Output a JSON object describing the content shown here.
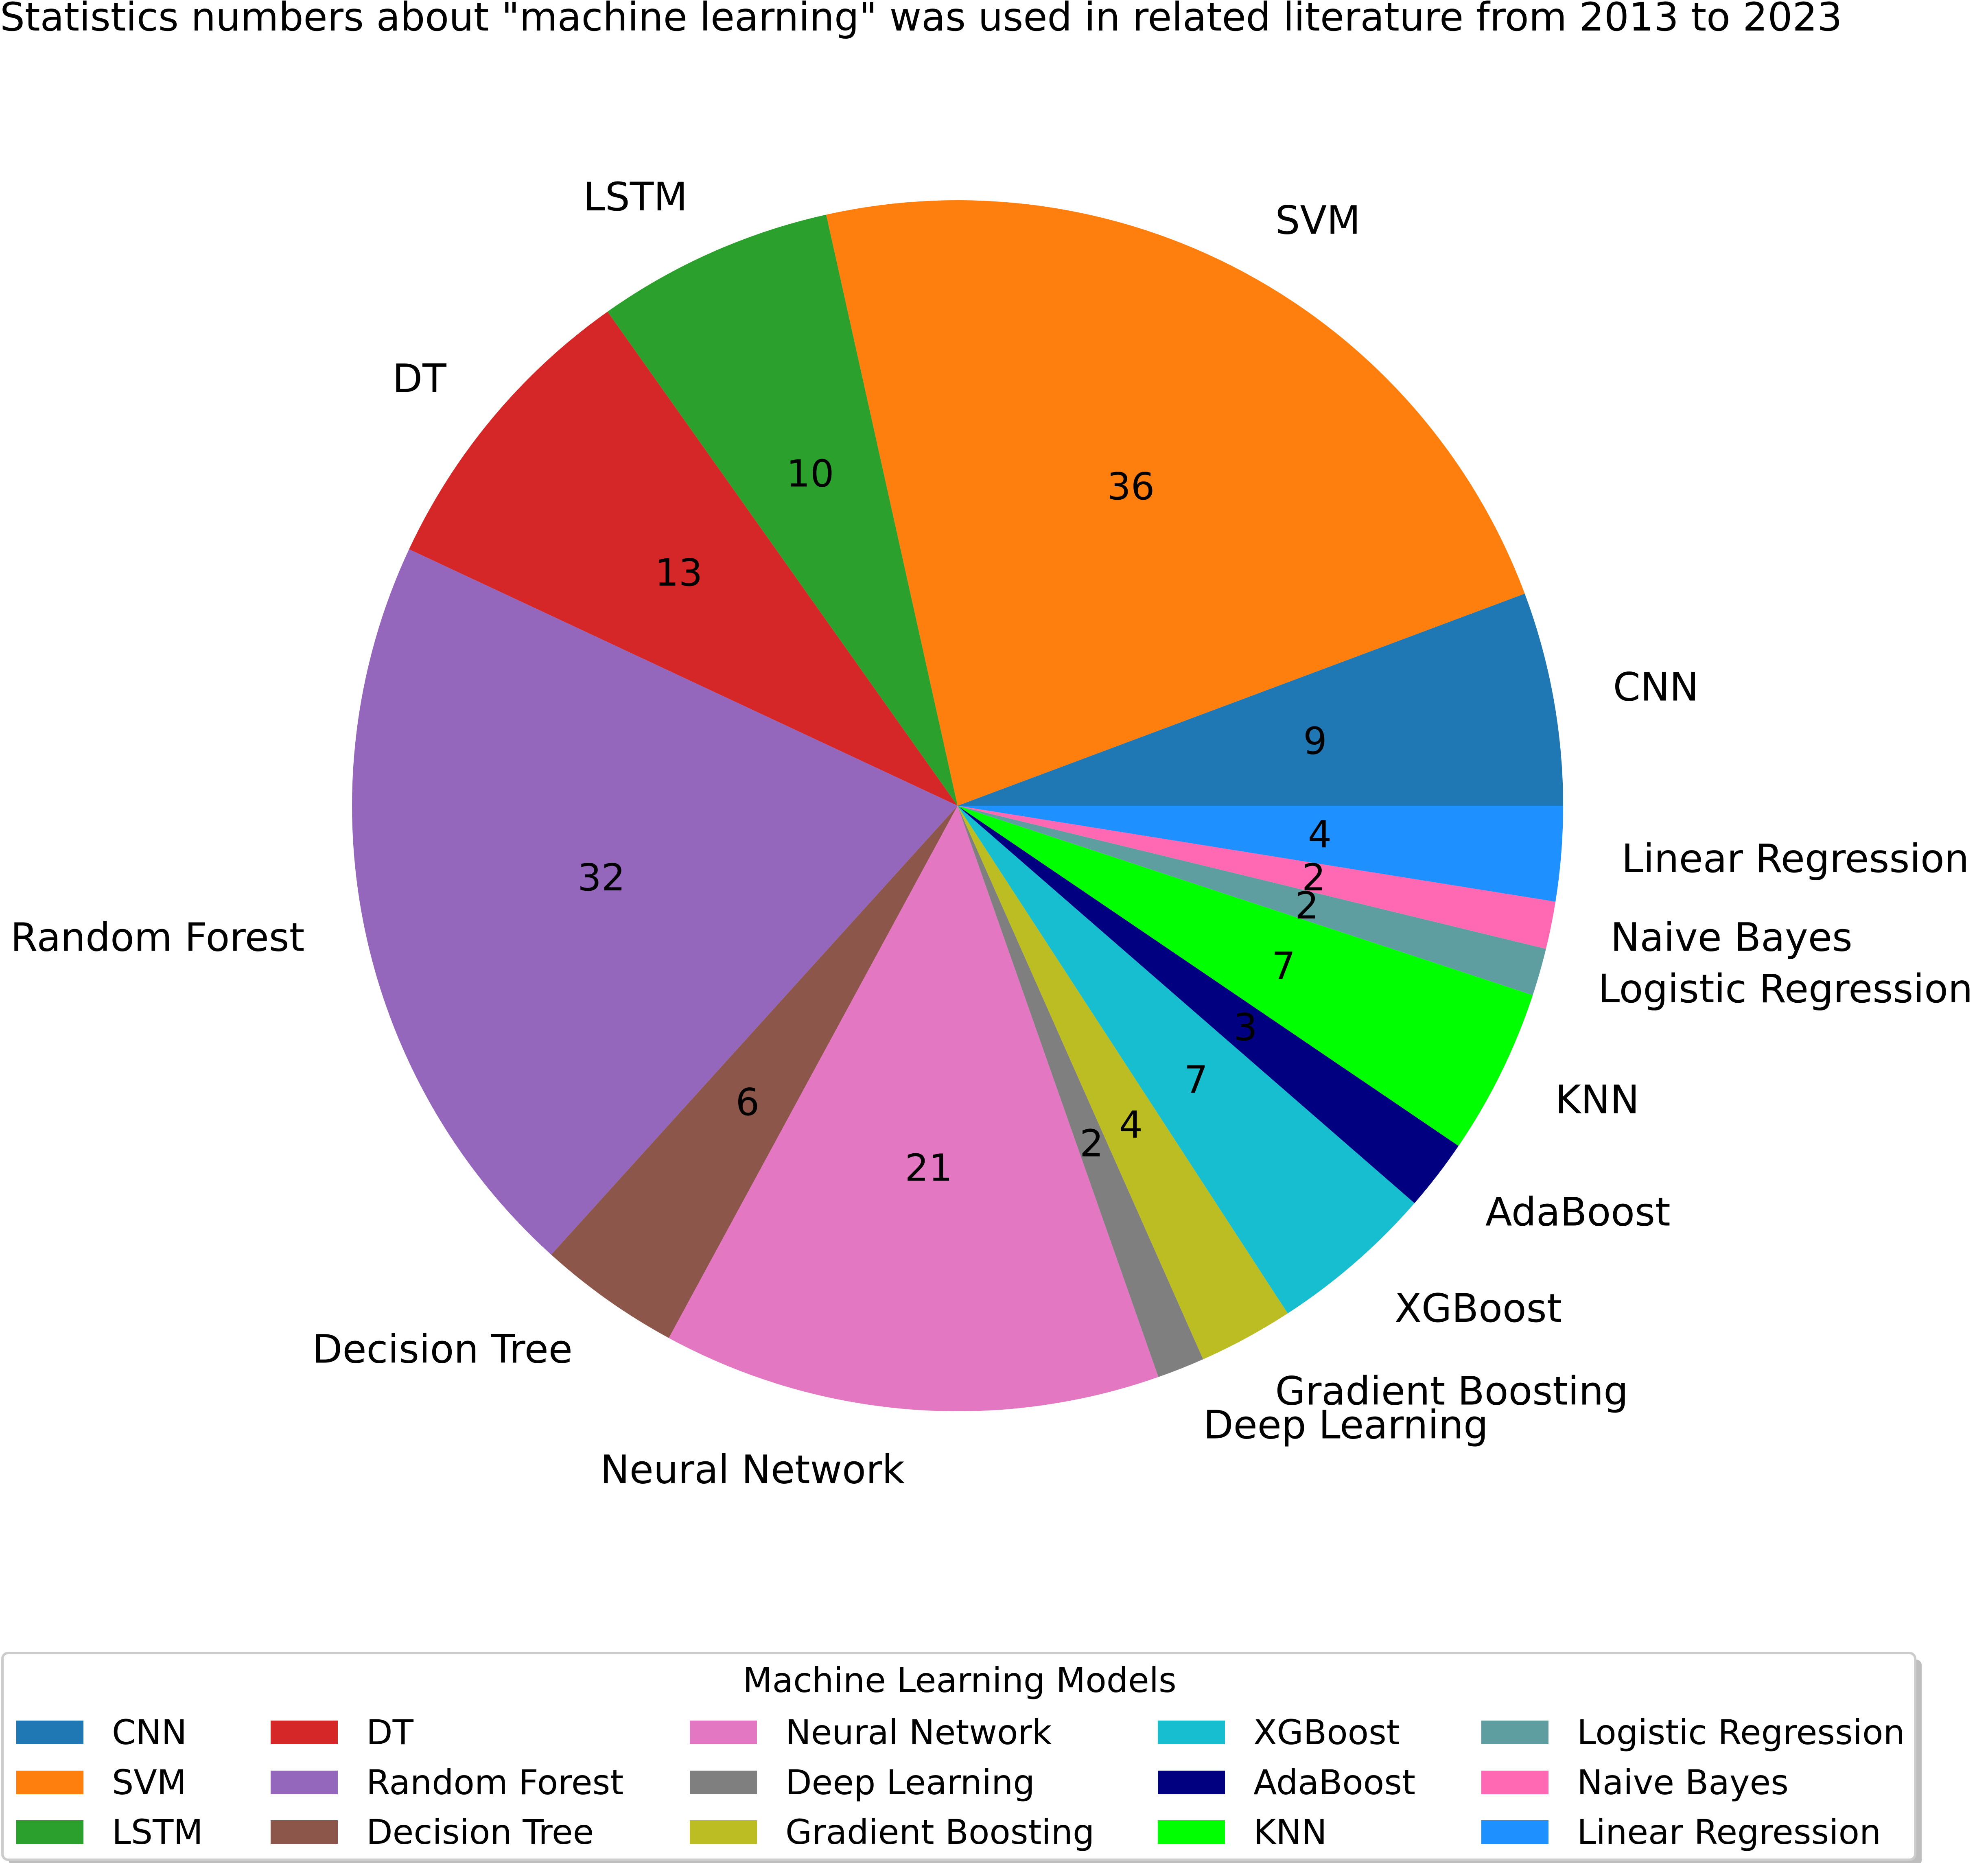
{
  "chart_data": {
    "type": "pie",
    "title": "Statistics numbers about \"machine learning\" was used in related literature from 2013 to 2023",
    "legend_title": "Machine Learning Models",
    "legend_placement": "bottom",
    "slices": [
      {
        "label": "CNN",
        "value": 9,
        "color": "#1f77b4"
      },
      {
        "label": "SVM",
        "value": 36,
        "color": "#ff7f0e"
      },
      {
        "label": "LSTM",
        "value": 10,
        "color": "#2ca02c"
      },
      {
        "label": "DT",
        "value": 13,
        "color": "#d62728"
      },
      {
        "label": "Random Forest",
        "value": 32,
        "color": "#9467bd"
      },
      {
        "label": "Decision Tree",
        "value": 6,
        "color": "#8c564b"
      },
      {
        "label": "Neural Network",
        "value": 21,
        "color": "#e377c2"
      },
      {
        "label": "Deep Learning",
        "value": 2,
        "color": "#7f7f7f"
      },
      {
        "label": "Gradient Boosting",
        "value": 4,
        "color": "#bcbd22"
      },
      {
        "label": "XGBoost",
        "value": 7,
        "color": "#17becf"
      },
      {
        "label": "AdaBoost",
        "value": 3,
        "color": "#000080"
      },
      {
        "label": "KNN",
        "value": 7,
        "color": "#00ff00"
      },
      {
        "label": "Logistic Regression",
        "value": 2,
        "color": "#5f9ea0"
      },
      {
        "label": "Naive Bayes",
        "value": 2,
        "color": "#ff69b4"
      },
      {
        "label": "Linear Regression",
        "value": 4,
        "color": "#1e90ff"
      }
    ]
  }
}
